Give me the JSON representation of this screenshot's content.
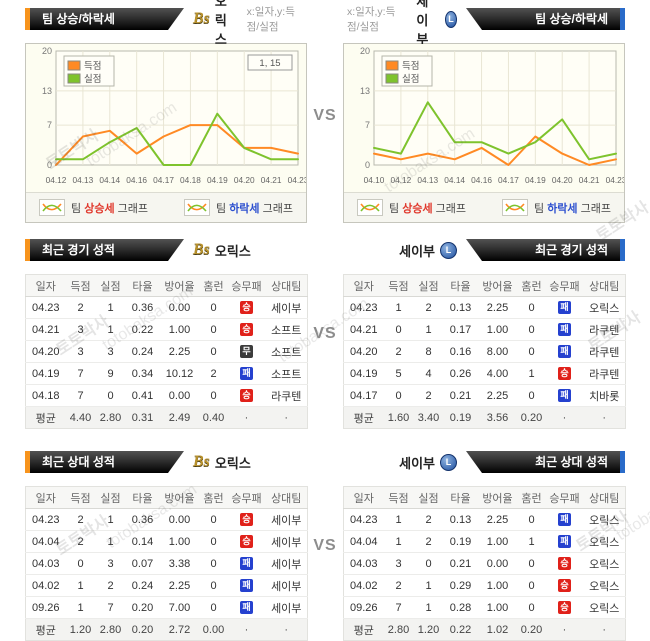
{
  "vs": "VS",
  "watermark": {
    "kr": "토토박사",
    "en": "totobaksa.com"
  },
  "teams": {
    "left": {
      "name": "오릭스",
      "logo_text": "Bs"
    },
    "right": {
      "name": "세이부",
      "logo_letter": "L"
    }
  },
  "chart_section": {
    "tab": "팀 상승/하락세",
    "axis_note": "x:일자,y:득점/실점",
    "footer": [
      {
        "pre": "팀",
        "word": "상승세",
        "post": "그래프",
        "color": "#e0382c"
      },
      {
        "pre": "팀",
        "word": "하락세",
        "post": "그래프",
        "color": "#2d50cf"
      }
    ]
  },
  "recent_section": {
    "tab": "최근 경기 성적"
  },
  "h2h_section": {
    "tab": "최근 상대 성적"
  },
  "table_headers": [
    "일자",
    "득점",
    "실점",
    "타율",
    "방어율",
    "홈런",
    "승무패",
    "상대팀"
  ],
  "tables": {
    "recent_left": {
      "rows": [
        [
          "04.23",
          "2",
          "1",
          "0.36",
          "0.00",
          "0",
          "승",
          "세이부"
        ],
        [
          "04.21",
          "3",
          "1",
          "0.22",
          "1.00",
          "0",
          "승",
          "소프트"
        ],
        [
          "04.20",
          "3",
          "3",
          "0.24",
          "2.25",
          "0",
          "무",
          "소프트"
        ],
        [
          "04.19",
          "7",
          "9",
          "0.34",
          "10.12",
          "2",
          "패",
          "소프트"
        ],
        [
          "04.18",
          "7",
          "0",
          "0.41",
          "0.00",
          "0",
          "승",
          "라쿠텐"
        ]
      ],
      "avg": [
        "평균",
        "4.40",
        "2.80",
        "0.31",
        "2.49",
        "0.40",
        "·",
        "·"
      ]
    },
    "recent_right": {
      "rows": [
        [
          "04.23",
          "1",
          "2",
          "0.13",
          "2.25",
          "0",
          "패",
          "오릭스"
        ],
        [
          "04.21",
          "0",
          "1",
          "0.17",
          "1.00",
          "0",
          "패",
          "라쿠텐"
        ],
        [
          "04.20",
          "2",
          "8",
          "0.16",
          "8.00",
          "0",
          "패",
          "라쿠텐"
        ],
        [
          "04.19",
          "5",
          "4",
          "0.26",
          "4.00",
          "1",
          "승",
          "라쿠텐"
        ],
        [
          "04.17",
          "0",
          "2",
          "0.21",
          "2.25",
          "0",
          "패",
          "치바롯"
        ]
      ],
      "avg": [
        "평균",
        "1.60",
        "3.40",
        "0.19",
        "3.56",
        "0.20",
        "·",
        "·"
      ]
    },
    "h2h_left": {
      "rows": [
        [
          "04.23",
          "2",
          "1",
          "0.36",
          "0.00",
          "0",
          "승",
          "세이부"
        ],
        [
          "04.04",
          "2",
          "1",
          "0.14",
          "1.00",
          "0",
          "승",
          "세이부"
        ],
        [
          "04.03",
          "0",
          "3",
          "0.07",
          "3.38",
          "0",
          "패",
          "세이부"
        ],
        [
          "04.02",
          "1",
          "2",
          "0.24",
          "2.25",
          "0",
          "패",
          "세이부"
        ],
        [
          "09.26",
          "1",
          "7",
          "0.20",
          "7.00",
          "0",
          "패",
          "세이부"
        ]
      ],
      "avg": [
        "평균",
        "1.20",
        "2.80",
        "0.20",
        "2.72",
        "0.00",
        "·",
        "·"
      ]
    },
    "h2h_right": {
      "rows": [
        [
          "04.23",
          "1",
          "2",
          "0.13",
          "2.25",
          "0",
          "패",
          "오릭스"
        ],
        [
          "04.04",
          "1",
          "2",
          "0.19",
          "1.00",
          "1",
          "패",
          "오릭스"
        ],
        [
          "04.03",
          "3",
          "0",
          "0.21",
          "0.00",
          "0",
          "승",
          "오릭스"
        ],
        [
          "04.02",
          "2",
          "1",
          "0.29",
          "1.00",
          "0",
          "승",
          "오릭스"
        ],
        [
          "09.26",
          "7",
          "1",
          "0.28",
          "1.00",
          "0",
          "승",
          "오릭스"
        ]
      ],
      "avg": [
        "평균",
        "2.80",
        "1.20",
        "0.22",
        "1.02",
        "0.20",
        "·",
        "·"
      ]
    }
  },
  "chart_data": [
    {
      "type": "line",
      "title": "오릭스 팀 상승/하락세",
      "x": [
        "04.12",
        "04.13",
        "04.14",
        "04.16",
        "04.17",
        "04.18",
        "04.19",
        "04.20",
        "04.21",
        "04.23"
      ],
      "series": [
        {
          "name": "득점",
          "color": "#ff8a24",
          "values": [
            0,
            5,
            6,
            2,
            5,
            7,
            7,
            3,
            3,
            2
          ]
        },
        {
          "name": "실점",
          "color": "#7ec32d",
          "values": [
            1,
            1,
            4,
            6.5,
            0,
            0,
            9,
            3,
            1,
            1
          ]
        }
      ],
      "ylim": [
        0,
        20
      ],
      "yticks": [
        0,
        7,
        13,
        20
      ],
      "grid": true,
      "legend_position": "top-left",
      "annotation": "1, 15"
    },
    {
      "type": "line",
      "title": "세이부 팀 상승/하락세",
      "x": [
        "04.10",
        "04.12",
        "04.13",
        "04.14",
        "04.16",
        "04.17",
        "04.19",
        "04.20",
        "04.21",
        "04.23"
      ],
      "series": [
        {
          "name": "득점",
          "color": "#ff8a24",
          "values": [
            2,
            1,
            2,
            1,
            3,
            0,
            5,
            2,
            0,
            1
          ]
        },
        {
          "name": "실점",
          "color": "#7ec32d",
          "values": [
            3,
            2,
            11,
            4,
            4,
            2,
            4,
            8,
            1,
            2
          ]
        }
      ],
      "ylim": [
        0,
        20
      ],
      "yticks": [
        0,
        7,
        13,
        20
      ],
      "grid": true,
      "legend_position": "top-left",
      "annotation": ""
    }
  ],
  "colors": {
    "score_line": "#ff8a24",
    "concede_line": "#7ec32d",
    "win_badge": "#e0211a",
    "draw_badge": "#3c3c3c",
    "loss_badge": "#2541cf",
    "tab_accent_left": "#f7941d",
    "tab_accent_right": "#2a6bc9"
  }
}
